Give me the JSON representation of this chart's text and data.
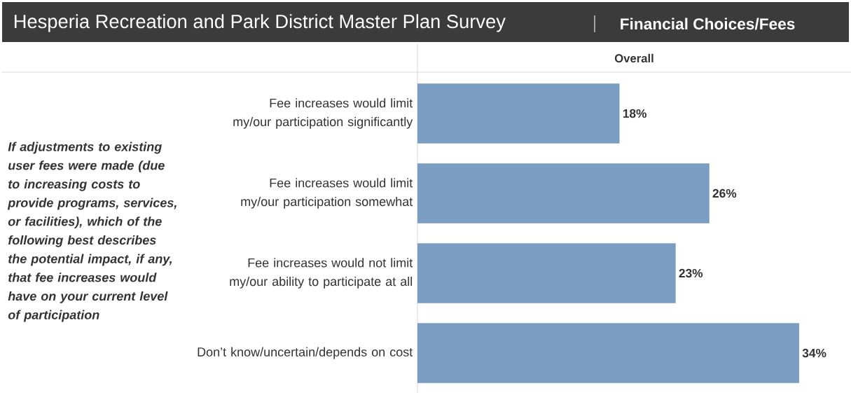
{
  "chart_data": {
    "type": "bar",
    "orientation": "horizontal",
    "title": "Hesperia Recreation and Park District Master Plan Survey",
    "subtitle": "Financial Choices/Fees",
    "xlabel": "Overall",
    "ylabel": "If adjustments to existing user fees were made (due to increasing costs to provide programs, services, or facilities), which of the following best describes the potential impact, if any, that fee increases would have on your current level of participation",
    "categories": [
      "Fee increases would limit my/our participation significantly",
      "Fee increases would limit my/our participation somewhat",
      "Fee increases would not limit my/our ability to participate at all",
      "Don’t know/uncertain/depends on cost"
    ],
    "values": [
      18,
      26,
      23,
      34
    ],
    "value_labels": [
      "18%",
      "26%",
      "23%",
      "34%"
    ],
    "color": "#7b9dc1"
  }
}
